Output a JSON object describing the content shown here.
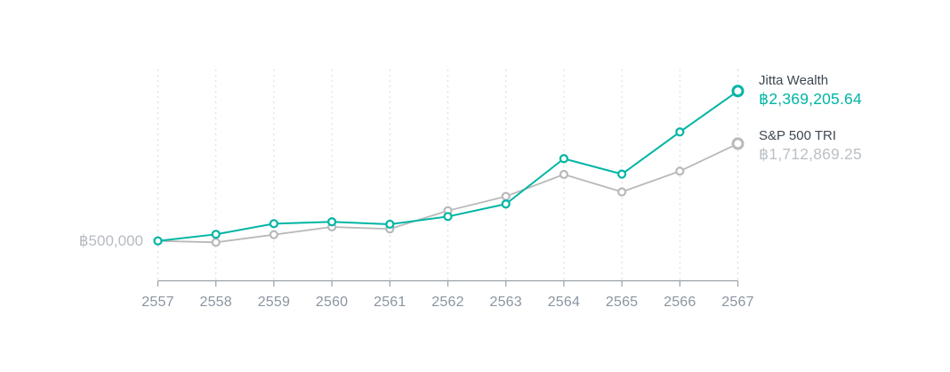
{
  "chart_data": {
    "type": "line",
    "x": [
      2557,
      2558,
      2559,
      2560,
      2561,
      2562,
      2563,
      2564,
      2565,
      2566,
      2567
    ],
    "series": [
      {
        "name": "S&P 500 TRI",
        "color": "#b9b9b9",
        "values": [
          500000,
          482000,
          578000,
          674000,
          649000,
          877000,
          1055000,
          1329000,
          1111000,
          1370000,
          1712869.25
        ],
        "final_value_label": "฿1,712,869.25"
      },
      {
        "name": "Jitta Wealth",
        "color": "#00b5a4",
        "values": [
          500000,
          582000,
          715000,
          738000,
          708000,
          804000,
          960000,
          1526000,
          1333000,
          1859000,
          2369205.64
        ],
        "final_value_label": "฿2,369,205.64"
      }
    ],
    "baseline_label": "฿500,000",
    "baseline_value": 500000,
    "currency_symbol": "฿",
    "title": "",
    "xlabel": "",
    "ylabel": "",
    "ylim": [
      400000,
      2500000
    ],
    "grid": "vertical-dashed",
    "legend_position": "right"
  },
  "legend": {
    "jitta": {
      "name": "Jitta Wealth",
      "value": "฿2,369,205.64"
    },
    "sp500": {
      "name": "S&P 500 TRI",
      "value": "฿1,712,869.25"
    }
  },
  "colors": {
    "accent_teal": "#00b5a4",
    "series_gray": "#b9b9b9",
    "gridline": "#d9d9d9",
    "axis_line": "#9aa0a6",
    "axis_text": "#8b95a1",
    "legend_name_text": "#3e4852",
    "muted_value_text": "#bcc1c6",
    "background": "#ffffff"
  }
}
